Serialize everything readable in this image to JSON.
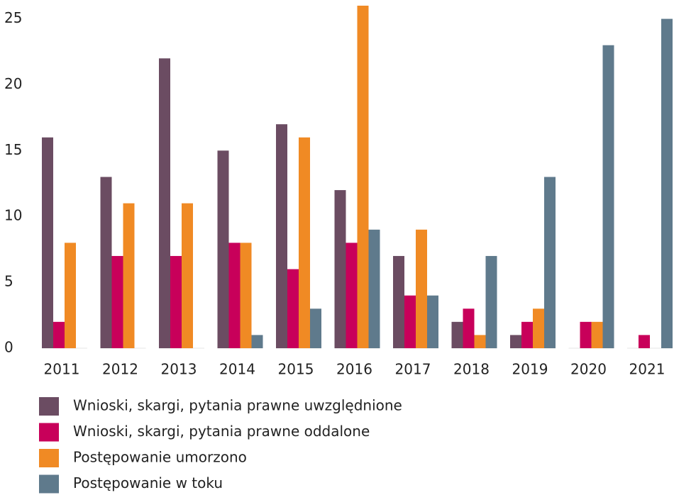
{
  "chart_data": {
    "type": "bar",
    "categories": [
      "2011",
      "2012",
      "2013",
      "2014",
      "2015",
      "2016",
      "2017",
      "2018",
      "2019",
      "2020",
      "2021"
    ],
    "series": [
      {
        "name": "Wnioski, skargi, pytania prawne uwzględnione",
        "color": "#6b4c62",
        "values": [
          16,
          13,
          22,
          15,
          17,
          12,
          7,
          2,
          1,
          0,
          0
        ]
      },
      {
        "name": "Wnioski, skargi, pytania prawne oddalone",
        "color": "#c8005a",
        "values": [
          2,
          7,
          7,
          8,
          6,
          8,
          4,
          3,
          2,
          2,
          1
        ]
      },
      {
        "name": "Postępowanie umorzono",
        "color": "#f08a24",
        "values": [
          8,
          11,
          11,
          8,
          16,
          26,
          9,
          1,
          3,
          2,
          0
        ]
      },
      {
        "name": "Postępowanie w toku",
        "color": "#5f7a8c",
        "values": [
          0,
          0,
          0,
          1,
          3,
          9,
          4,
          7,
          13,
          23,
          25
        ]
      }
    ],
    "ylim": [
      0,
      26
    ],
    "yticks": [
      0,
      5,
      10,
      15,
      20,
      25
    ],
    "grid": false,
    "legend": "bottom"
  }
}
